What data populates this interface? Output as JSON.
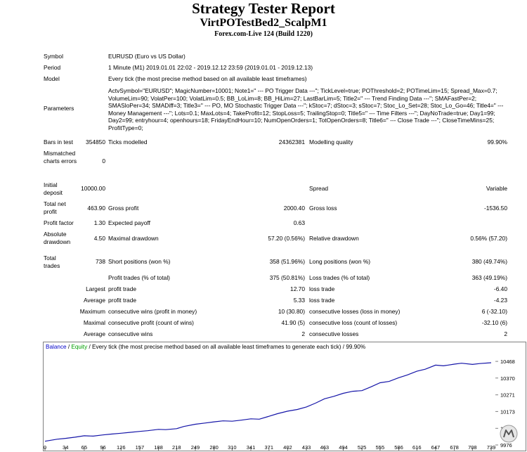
{
  "header": {
    "title": "Strategy Tester Report",
    "ea_name": "VirtPOTestBed2_ScalpM1",
    "server": "Forex.com-Live 124 (Build 1220)"
  },
  "info": {
    "symbol_label": "Symbol",
    "symbol": "EURUSD (Euro vs US Dollar)",
    "period_label": "Period",
    "period": "1 Minute (M1) 2019.01.01 22:02 - 2019.12.12 23:59 (2019.01.01 - 2019.12.13)",
    "model_label": "Model",
    "model": "Every tick (the most precise method based on all available least timeframes)",
    "params_label": "Parameters",
    "params": "ActvSymbol=\"EURUSD\"; MagicNumber=10001; Note1=\" --- PO Trigger Data ---\"; TickLevel=true; POThreshold=2; POTimeLim=15; Spread_Max=0.7; VolumeLim=90; VolatPer=100; VolatLim=0.5; BB_LoLim=8; BB_HiLim=27; LastBarLim=5; Title2=\" --- Trend Finding Data ---\"; SMAFastPer=2; SMASloPer=34; SMADiff=3; Title3=\" --- PO, MO Stochastic Trigger Data ---\"; kStoc=7; dStoc=3; sStoc=7; Stoc_Lo_Set=28; Stoc_Lo_Go=46; Title4=\" --- Money Management ---\"; Lots=0.1; MaxLots=4; TakeProfit=12; StopLoss=5; TrailingStop=0; Title5=\" --- Time Filters ---\"; DayNoTrade=true; Day1=99; Day2=99; entryhour=4; openhours=18; FridayEndHour=10; NumOpenOrders=1; TotOpenOrders=8; Title6=\" --- Close Trade ---\"; CloseTimeMins=25; ProfitType=0;"
  },
  "stats": {
    "bars_label": "Bars in test",
    "bars": "354850",
    "ticks_label": "Ticks modelled",
    "ticks": "24362381",
    "quality_label": "Modelling quality",
    "quality": "99.90%",
    "mismatched_label": "Mismatched charts errors",
    "mismatched": "0",
    "deposit_label": "Initial deposit",
    "deposit": "10000.00",
    "spread_label": "Spread",
    "spread": "Variable",
    "net_label": "Total net profit",
    "net": "463.90",
    "gross_profit_label": "Gross profit",
    "gross_profit": "2000.40",
    "gross_loss_label": "Gross loss",
    "gross_loss": "-1536.50",
    "pf_label": "Profit factor",
    "pf": "1.30",
    "payoff_label": "Expected payoff",
    "payoff": "0.63",
    "abs_dd_label": "Absolute drawdown",
    "abs_dd": "4.50",
    "max_dd_label": "Maximal drawdown",
    "max_dd": "57.20 (0.56%)",
    "rel_dd_label": "Relative drawdown",
    "rel_dd": "0.56% (57.20)",
    "trades_label": "Total trades",
    "trades": "738",
    "short_label": "Short positions (won %)",
    "short": "358 (51.96%)",
    "long_label": "Long positions (won %)",
    "long": "380 (49.74%)",
    "ptrades_label": "Profit trades (% of total)",
    "ptrades": "375 (50.81%)",
    "ltrades_label": "Loss trades (% of total)",
    "ltrades": "363 (49.19%)",
    "largest_label": "Largest",
    "largest_p_label": "profit trade",
    "largest_p": "12.70",
    "largest_l_label": "loss trade",
    "largest_l": "-6.40",
    "average_label": "Average",
    "average_p_label": "profit trade",
    "average_p": "5.33",
    "average_l_label": "loss trade",
    "average_l": "-4.23",
    "maximum_label": "Maximum",
    "max_wins_label": "consecutive wins (profit in money)",
    "max_wins": "10 (30.80)",
    "max_losses_label": "consecutive losses (loss in money)",
    "max_losses": "6 (-32.10)",
    "maximal_label": "Maximal",
    "mp_label": "consecutive profit (count of wins)",
    "mp": "41.90 (5)",
    "ml_label": "consecutive loss (count of losses)",
    "ml": "-32.10 (6)",
    "avg_label": "Average",
    "avg_wins_label": "consecutive wins",
    "avg_wins": "2",
    "avg_losses_label": "consecutive losses",
    "avg_losses": "2"
  },
  "chart_legend": {
    "balance": "Balance",
    "sep": " / ",
    "equity": "Equity",
    "rest": " / Every tick (the most precise method based on all available least timeframes to generate each tick)",
    "quality": " / 99.90%"
  },
  "chart_data": {
    "type": "line",
    "series": [
      {
        "name": "Balance",
        "color": "#1515a8"
      }
    ],
    "x_ticks": [
      "0",
      "34",
      "65",
      "96",
      "126",
      "157",
      "188",
      "218",
      "249",
      "280",
      "310",
      "341",
      "371",
      "402",
      "433",
      "463",
      "494",
      "525",
      "555",
      "586",
      "616",
      "647",
      "678",
      "708",
      "739"
    ],
    "y_ticks": [
      "10468",
      "10370",
      "10271",
      "10173",
      "10074",
      "9976"
    ],
    "xlim": [
      0,
      739
    ],
    "ylim": [
      9976,
      10518
    ],
    "x": [
      0,
      20,
      34,
      50,
      65,
      80,
      96,
      110,
      126,
      140,
      157,
      170,
      188,
      200,
      218,
      230,
      249,
      265,
      280,
      295,
      310,
      325,
      341,
      355,
      371,
      385,
      402,
      418,
      433,
      448,
      463,
      478,
      494,
      510,
      525,
      540,
      555,
      570,
      586,
      600,
      616,
      630,
      647,
      660,
      678,
      690,
      708,
      720,
      739
    ],
    "y": [
      9998,
      10010,
      10015,
      10022,
      10030,
      10028,
      10035,
      10040,
      10045,
      10050,
      10056,
      10060,
      10068,
      10066,
      10072,
      10085,
      10098,
      10105,
      10112,
      10118,
      10116,
      10122,
      10130,
      10128,
      10145,
      10160,
      10175,
      10185,
      10200,
      10222,
      10248,
      10262,
      10280,
      10292,
      10296,
      10318,
      10342,
      10350,
      10372,
      10388,
      10410,
      10422,
      10446,
      10442,
      10452,
      10457,
      10450,
      10455,
      10460
    ],
    "grid": false
  },
  "logo": {
    "symbol": "MT"
  },
  "colors": {
    "balance_line": "#1515a8",
    "legend_balance": "#0000c8",
    "legend_equity": "#00a000",
    "border": "#808080"
  }
}
